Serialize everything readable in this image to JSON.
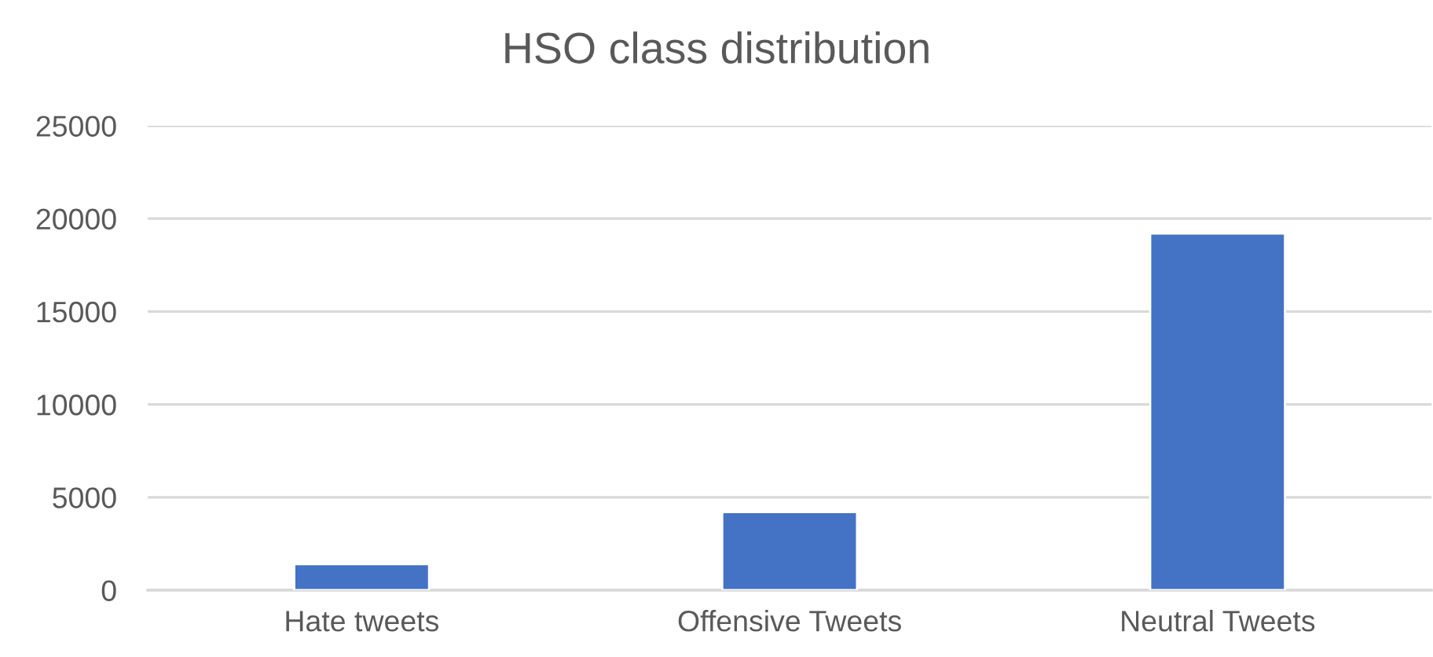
{
  "chart_data": {
    "type": "bar",
    "title": "HSO class distribution",
    "categories": [
      "Hate tweets",
      "Offensive Tweets",
      "Neutral Tweets"
    ],
    "values": [
      1400,
      4200,
      19200
    ],
    "color": "#4472c4",
    "ylim": [
      0,
      25000
    ],
    "yticks": [
      0,
      5000,
      10000,
      15000,
      20000,
      25000
    ],
    "grid": "y"
  }
}
